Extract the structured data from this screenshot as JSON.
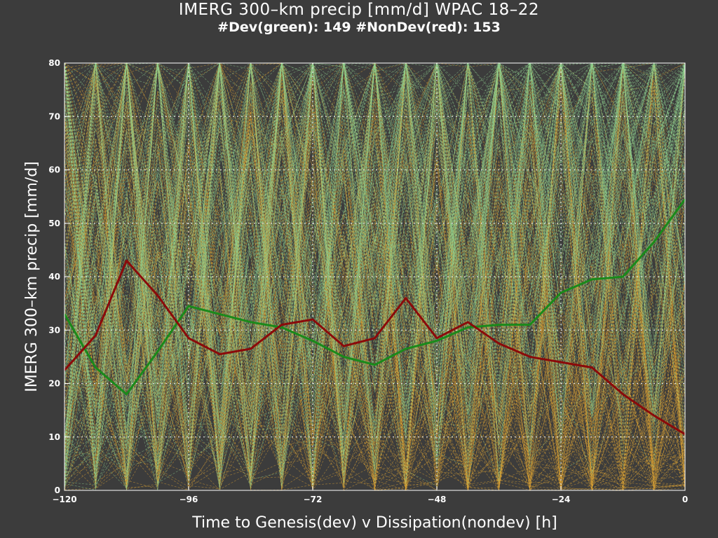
{
  "chart_data": {
    "type": "line",
    "title": "IMERG 300–km precip [mm/d] WPAC 18–22",
    "subtitle": "#Dev(green): 149 #NonDev(red): 153",
    "xlabel": "Time to Genesis(dev) v Dissipation(nondev) [h]",
    "ylabel": "IMERG 300–km precip [mm/d]",
    "xlim": [
      -120,
      0
    ],
    "ylim": [
      0,
      80
    ],
    "xticks": [
      -120,
      -96,
      -72,
      -48,
      -24,
      0
    ],
    "yticks": [
      0,
      10,
      20,
      30,
      40,
      50,
      60,
      70,
      80
    ],
    "grid": true,
    "x": [
      -120,
      -114,
      -108,
      -102,
      -96,
      -90,
      -84,
      -78,
      -72,
      -66,
      -60,
      -54,
      -48,
      -42,
      -36,
      -30,
      -24,
      -18,
      -12,
      -6,
      0
    ],
    "series": [
      {
        "name": "Dev",
        "color": "#1a8a1a",
        "values": [
          33,
          23,
          18,
          26,
          34.5,
          33,
          31.5,
          30.5,
          28,
          25,
          23.5,
          26.5,
          28,
          30.5,
          31,
          31,
          37,
          39.5,
          40,
          46.5,
          54.5
        ]
      },
      {
        "name": "NonDev",
        "color": "#8b0a0a",
        "values": [
          22.5,
          29,
          43,
          36.5,
          28.5,
          25.5,
          26.5,
          31,
          32,
          27,
          28.5,
          36,
          28.5,
          31.5,
          27.5,
          25,
          24,
          23,
          18,
          14,
          10.5
        ]
      }
    ],
    "individual_tracks": {
      "dev_color": "#8fd18f",
      "nondev_color": "#e0a535",
      "dev_count": 149,
      "nondev_count": 153,
      "style": "dashed"
    }
  }
}
